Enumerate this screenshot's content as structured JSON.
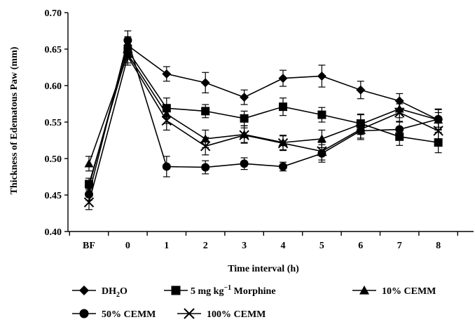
{
  "chart_data": {
    "type": "line",
    "xlabel": "Time interval (h)",
    "ylabel": "Thickness of Edematous Paw (mm)",
    "categories": [
      "BF",
      "0",
      "1",
      "2",
      "3",
      "4",
      "5",
      "6",
      "7",
      "8"
    ],
    "ylim": [
      0.4,
      0.7
    ],
    "yticks": [
      "0.40",
      "0.45",
      "0.50",
      "0.55",
      "0.60",
      "0.65",
      "0.70"
    ],
    "grid": false,
    "legend_position": "bottom",
    "series": [
      {
        "name": "DH2O",
        "marker": "diamond",
        "values": [
          0.462,
          0.655,
          0.616,
          0.604,
          0.584,
          0.61,
          0.613,
          0.594,
          0.579,
          0.553
        ],
        "errors": [
          0.008,
          0.012,
          0.01,
          0.014,
          0.01,
          0.011,
          0.015,
          0.012,
          0.01,
          0.014
        ]
      },
      {
        "name": "5 mg kg-1 Morphine",
        "marker": "square",
        "values": [
          0.465,
          0.648,
          0.569,
          0.565,
          0.555,
          0.571,
          0.56,
          0.548,
          0.53,
          0.522
        ],
        "errors": [
          0.008,
          0.012,
          0.014,
          0.009,
          0.01,
          0.012,
          0.01,
          0.012,
          0.012,
          0.014
        ]
      },
      {
        "name": "10% CEMM",
        "marker": "triangle",
        "values": [
          0.493,
          0.643,
          0.561,
          0.527,
          0.533,
          0.522,
          0.527,
          0.547,
          0.568,
          0.553
        ],
        "errors": [
          0.01,
          0.012,
          0.013,
          0.012,
          0.012,
          0.01,
          0.012,
          0.014,
          0.012,
          0.01
        ]
      },
      {
        "name": "50% CEMM",
        "marker": "circle",
        "values": [
          0.451,
          0.662,
          0.489,
          0.488,
          0.493,
          0.489,
          0.507,
          0.538,
          0.54,
          0.554
        ],
        "errors": [
          0.008,
          0.013,
          0.014,
          0.009,
          0.008,
          0.006,
          0.012,
          0.012,
          0.01,
          0.014
        ]
      },
      {
        "name": "100% CEMM",
        "marker": "x",
        "values": [
          0.44,
          0.64,
          0.552,
          0.517,
          0.532,
          0.521,
          0.51,
          0.54,
          0.563,
          0.538
        ],
        "errors": [
          0.01,
          0.012,
          0.013,
          0.012,
          0.01,
          0.01,
          0.012,
          0.012,
          0.012,
          0.014
        ]
      }
    ]
  },
  "legend": {
    "items": [
      {
        "key": "DH2O",
        "main": "DH",
        "sub": "2",
        "tail": "O"
      },
      {
        "key": "5 mg kg-1 Morphine",
        "main": "5 mg kg",
        "sup": "−1",
        "tail": " Morphine"
      },
      {
        "key": "10% CEMM",
        "main": "10% CEMM"
      },
      {
        "key": "50% CEMM",
        "main": "50% CEMM"
      },
      {
        "key": "100% CEMM",
        "main": "100% CEMM"
      }
    ]
  }
}
